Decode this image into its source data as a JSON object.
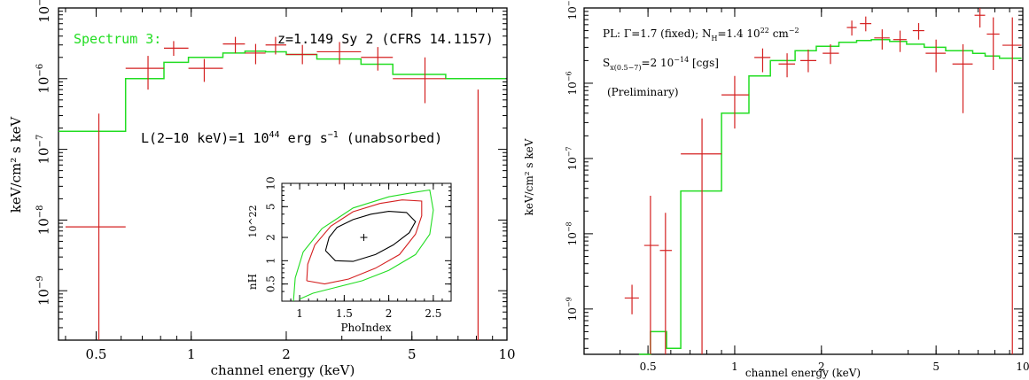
{
  "chart_data": [
    {
      "type": "scatter",
      "panel": "left",
      "title": "",
      "xlabel": "channel energy (keV)",
      "ylabel": "keV/cm² s keV",
      "x_scale": "log",
      "y_scale": "log",
      "xlim": [
        0.38,
        10
      ],
      "ylim": [
        2e-10,
        1e-05
      ],
      "x_ticks": [
        {
          "v": 0.5,
          "label": "0.5"
        },
        {
          "v": 1,
          "label": "1"
        },
        {
          "v": 2,
          "label": "2"
        },
        {
          "v": 5,
          "label": "5"
        },
        {
          "v": 10,
          "label": "10"
        }
      ],
      "y_ticks": [
        {
          "v": 1e-09,
          "base": "10",
          "exp": "−9"
        },
        {
          "v": 1e-08,
          "base": "10",
          "exp": "−8"
        },
        {
          "v": 1e-07,
          "base": "10",
          "exp": "−7"
        },
        {
          "v": 1e-06,
          "base": "10",
          "exp": "−6"
        },
        {
          "v": 1e-05,
          "base": "10",
          "exp": "−5"
        }
      ],
      "annotations": {
        "spectrum_label": "Spectrum 3:",
        "source": "z=1.149 Sy 2 (CFRS 14.1157)",
        "lum_pre": "L(2−10 keV)=1 10",
        "lum_exp": "44",
        "lum_mid": " erg s",
        "lum_exp2": "−1",
        "lum_post": " (unabsorbed)"
      },
      "colors": {
        "data": "#d42020",
        "model": "#22dd22",
        "axes": "#000000"
      },
      "series": [
        {
          "kind": "data",
          "points": [
            {
              "x": 0.51,
              "xlo": 0.4,
              "xhi": 0.62,
              "y": 8e-09,
              "ylo": 2e-10,
              "yhi": 3.2e-07
            },
            {
              "x": 0.73,
              "xlo": 0.62,
              "xhi": 0.82,
              "y": 1.4e-06,
              "ylo": 7e-07,
              "yhi": 2.1e-06
            },
            {
              "x": 0.88,
              "xlo": 0.82,
              "xhi": 0.98,
              "y": 2.7e-06,
              "ylo": 2.1e-06,
              "yhi": 3.4e-06
            },
            {
              "x": 1.1,
              "xlo": 0.98,
              "xhi": 1.26,
              "y": 1.4e-06,
              "ylo": 9e-07,
              "yhi": 1.9e-06
            },
            {
              "x": 1.38,
              "xlo": 1.26,
              "xhi": 1.48,
              "y": 3.1e-06,
              "ylo": 2.3e-06,
              "yhi": 3.9e-06
            },
            {
              "x": 1.6,
              "xlo": 1.48,
              "xhi": 1.72,
              "y": 2.3e-06,
              "ylo": 1.6e-06,
              "yhi": 3.1e-06
            },
            {
              "x": 1.85,
              "xlo": 1.72,
              "xhi": 2.0,
              "y": 3e-06,
              "ylo": 2.2e-06,
              "yhi": 3.9e-06
            },
            {
              "x": 2.25,
              "xlo": 2.0,
              "xhi": 2.5,
              "y": 2.2e-06,
              "ylo": 1.6e-06,
              "yhi": 3e-06
            },
            {
              "x": 2.95,
              "xlo": 2.5,
              "xhi": 3.45,
              "y": 2.4e-06,
              "ylo": 1.6e-06,
              "yhi": 3.3e-06
            },
            {
              "x": 3.9,
              "xlo": 3.45,
              "xhi": 4.35,
              "y": 2e-06,
              "ylo": 1.3e-06,
              "yhi": 2.8e-06
            },
            {
              "x": 5.5,
              "xlo": 4.35,
              "xhi": 6.4,
              "y": 1e-06,
              "ylo": 4.5e-07,
              "yhi": 2e-06
            },
            {
              "x": 8.1,
              "xlo": 8.1,
              "xhi": 8.1,
              "y": 7e-07,
              "ylo": 2e-10,
              "yhi": 7e-07
            }
          ]
        },
        {
          "kind": "model",
          "steps": [
            [
              0.38,
              0.62,
              1.8e-07
            ],
            [
              0.62,
              0.82,
              1e-06
            ],
            [
              0.82,
              0.98,
              1.7e-06
            ],
            [
              0.98,
              1.26,
              2e-06
            ],
            [
              1.26,
              1.48,
              2.3e-06
            ],
            [
              1.48,
              1.72,
              2.45e-06
            ],
            [
              1.72,
              2.0,
              2.4e-06
            ],
            [
              2.0,
              2.5,
              2.2e-06
            ],
            [
              2.5,
              3.45,
              1.9e-06
            ],
            [
              3.45,
              4.35,
              1.6e-06
            ],
            [
              4.35,
              6.4,
              1.15e-06
            ],
            [
              6.4,
              9.9,
              1e-06
            ]
          ]
        }
      ]
    },
    {
      "type": "contour",
      "panel": "left-inset",
      "xlabel": "PhoIndex",
      "ylabel": "nH",
      "ylabel_extra": "10^22",
      "x_scale": "linear",
      "y_scale": "log",
      "xlim": [
        0.8,
        2.7
      ],
      "ylim": [
        0.3,
        10
      ],
      "x_ticks": [
        {
          "v": 1,
          "label": "1"
        },
        {
          "v": 1.5,
          "label": "1.5"
        },
        {
          "v": 2,
          "label": "2"
        },
        {
          "v": 2.5,
          "label": "2.5"
        }
      ],
      "y_ticks": [
        {
          "v": 0.5,
          "label": "0.5"
        },
        {
          "v": 1,
          "label": "1"
        },
        {
          "v": 2,
          "label": "2"
        },
        {
          "v": 5,
          "label": "5"
        },
        {
          "v": 10,
          "label": "10"
        }
      ],
      "best_fit": {
        "x": 1.72,
        "y": 2.0
      },
      "contours": [
        {
          "color": "#000000",
          "points": [
            [
              1.29,
              1.35
            ],
            [
              1.33,
              2.0
            ],
            [
              1.42,
              2.7
            ],
            [
              1.6,
              3.4
            ],
            [
              1.8,
              4.0
            ],
            [
              2.0,
              4.35
            ],
            [
              2.2,
              4.2
            ],
            [
              2.3,
              3.2
            ],
            [
              2.23,
              2.3
            ],
            [
              2.05,
              1.6
            ],
            [
              1.85,
              1.2
            ],
            [
              1.6,
              0.98
            ],
            [
              1.4,
              1.0
            ],
            [
              1.29,
              1.35
            ]
          ]
        },
        {
          "color": "#d42020",
          "points": [
            [
              1.08,
              0.55
            ],
            [
              1.09,
              0.9
            ],
            [
              1.17,
              1.6
            ],
            [
              1.35,
              2.8
            ],
            [
              1.6,
              4.3
            ],
            [
              1.9,
              5.5
            ],
            [
              2.15,
              6.1
            ],
            [
              2.37,
              5.9
            ],
            [
              2.37,
              3.8
            ],
            [
              2.3,
              2.2
            ],
            [
              2.12,
              1.2
            ],
            [
              1.85,
              0.8
            ],
            [
              1.55,
              0.58
            ],
            [
              1.28,
              0.5
            ],
            [
              1.08,
              0.55
            ]
          ]
        },
        {
          "color": "#22dd22",
          "points": [
            [
              0.93,
              0.3
            ],
            [
              0.95,
              0.6
            ],
            [
              1.04,
              1.3
            ],
            [
              1.25,
              2.6
            ],
            [
              1.6,
              4.8
            ],
            [
              2.0,
              6.7
            ],
            [
              2.3,
              7.7
            ],
            [
              2.46,
              8.2
            ],
            [
              2.5,
              4.5
            ],
            [
              2.46,
              2.2
            ],
            [
              2.3,
              1.2
            ],
            [
              2.0,
              0.75
            ],
            [
              1.7,
              0.55
            ],
            [
              1.4,
              0.45
            ],
            [
              1.15,
              0.38
            ],
            [
              1.0,
              0.32
            ]
          ]
        }
      ]
    },
    {
      "type": "scatter",
      "panel": "right",
      "title": "",
      "xlabel": "channel energy (keV)",
      "ylabel": "keV/cm² s keV",
      "x_scale": "log",
      "y_scale": "log",
      "xlim": [
        0.3,
        10
      ],
      "ylim": [
        2.5e-10,
        1e-05
      ],
      "x_ticks": [
        {
          "v": 0.5,
          "label": "0.5"
        },
        {
          "v": 1,
          "label": "1"
        },
        {
          "v": 2,
          "label": "2"
        },
        {
          "v": 5,
          "label": "5"
        },
        {
          "v": 10,
          "label": "10"
        }
      ],
      "y_ticks": [
        {
          "v": 1e-09,
          "base": "10",
          "exp": "−9"
        },
        {
          "v": 1e-08,
          "base": "10",
          "exp": "−8"
        },
        {
          "v": 1e-07,
          "base": "10",
          "exp": "−7"
        },
        {
          "v": 1e-06,
          "base": "10",
          "exp": "−6"
        },
        {
          "v": 1e-05,
          "base": "10",
          "exp": "−5"
        }
      ],
      "annotations": {
        "pl_pre": "PL: Γ=1.7 (fixed); N",
        "pl_sub": "H",
        "pl_mid": "=1.4 10",
        "pl_exp": "22",
        "pl_mid2": " cm",
        "pl_exp2": "−2",
        "sx_pre": "S",
        "sx_sub": "x(0.5−7)",
        "sx_mid": "=2 10",
        "sx_exp": "−14",
        "sx_post": " [cgs]",
        "prelim": "(Preliminary)"
      },
      "colors": {
        "data": "#d42020",
        "model": "#22dd22",
        "axes": "#000000"
      },
      "series": [
        {
          "kind": "data",
          "points": [
            {
              "x": 0.44,
              "xlo": 0.415,
              "xhi": 0.465,
              "y": 1.4e-09,
              "ylo": 8.5e-10,
              "yhi": 2.1e-09
            },
            {
              "x": 0.51,
              "xlo": 0.485,
              "xhi": 0.545,
              "y": 7e-09,
              "ylo": 2.5e-10,
              "yhi": 3.2e-08
            },
            {
              "x": 0.575,
              "xlo": 0.55,
              "xhi": 0.605,
              "y": 6e-09,
              "ylo": 2.5e-10,
              "yhi": 1.9e-08
            },
            {
              "x": 0.77,
              "xlo": 0.65,
              "xhi": 0.9,
              "y": 1.15e-07,
              "ylo": 2.5e-10,
              "yhi": 3.4e-07
            },
            {
              "x": 1.0,
              "xlo": 0.9,
              "xhi": 1.12,
              "y": 7e-07,
              "ylo": 2.5e-07,
              "yhi": 1.25e-06
            },
            {
              "x": 1.25,
              "xlo": 1.17,
              "xhi": 1.33,
              "y": 2.2e-06,
              "ylo": 1.4e-06,
              "yhi": 2.9e-06
            },
            {
              "x": 1.52,
              "xlo": 1.42,
              "xhi": 1.62,
              "y": 1.8e-06,
              "ylo": 1.2e-06,
              "yhi": 2.5e-06
            },
            {
              "x": 1.8,
              "xlo": 1.69,
              "xhi": 1.92,
              "y": 2e-06,
              "ylo": 1.4e-06,
              "yhi": 2.8e-06
            },
            {
              "x": 2.15,
              "xlo": 2.02,
              "xhi": 2.3,
              "y": 2.5e-06,
              "ylo": 1.8e-06,
              "yhi": 3.3e-06
            },
            {
              "x": 2.55,
              "xlo": 2.45,
              "xhi": 2.65,
              "y": 5.5e-06,
              "ylo": 4.3e-06,
              "yhi": 6.8e-06
            },
            {
              "x": 2.85,
              "xlo": 2.72,
              "xhi": 2.98,
              "y": 6.2e-06,
              "ylo": 4.9e-06,
              "yhi": 7.7e-06
            },
            {
              "x": 3.25,
              "xlo": 3.05,
              "xhi": 3.45,
              "y": 4e-06,
              "ylo": 2.8e-06,
              "yhi": 5.2e-06
            },
            {
              "x": 3.75,
              "xlo": 3.55,
              "xhi": 3.95,
              "y": 3.8e-06,
              "ylo": 2.6e-06,
              "yhi": 5e-06
            },
            {
              "x": 4.35,
              "xlo": 4.15,
              "xhi": 4.55,
              "y": 5e-06,
              "ylo": 3.8e-06,
              "yhi": 6.3e-06
            },
            {
              "x": 5.0,
              "xlo": 4.6,
              "xhi": 5.4,
              "y": 2.5e-06,
              "ylo": 1.4e-06,
              "yhi": 3.8e-06
            },
            {
              "x": 6.2,
              "xlo": 5.7,
              "xhi": 6.7,
              "y": 1.8e-06,
              "ylo": 4e-07,
              "yhi": 3.3e-06
            },
            {
              "x": 7.1,
              "xlo": 6.8,
              "xhi": 7.4,
              "y": 8e-06,
              "ylo": 5.5e-06,
              "yhi": 1e-05
            },
            {
              "x": 7.9,
              "xlo": 7.5,
              "xhi": 8.3,
              "y": 4.5e-06,
              "ylo": 1.5e-06,
              "yhi": 7.5e-06
            },
            {
              "x": 9.2,
              "xlo": 8.5,
              "xhi": 9.9,
              "y": 3.2e-06,
              "ylo": 2.5e-10,
              "yhi": 7.5e-06
            }
          ]
        },
        {
          "kind": "model",
          "steps": [
            [
              0.465,
              0.51,
              2.5e-10
            ],
            [
              0.51,
              0.58,
              5e-10
            ],
            [
              0.58,
              0.65,
              3e-10
            ],
            [
              0.65,
              0.9,
              3.7e-08
            ],
            [
              0.9,
              1.12,
              4e-07
            ],
            [
              1.12,
              1.33,
              1.25e-06
            ],
            [
              1.33,
              1.62,
              2e-06
            ],
            [
              1.62,
              1.92,
              2.7e-06
            ],
            [
              1.92,
              2.3,
              3.1e-06
            ],
            [
              2.3,
              2.65,
              3.5e-06
            ],
            [
              2.65,
              2.98,
              3.7e-06
            ],
            [
              2.98,
              3.45,
              3.8e-06
            ],
            [
              3.45,
              3.95,
              3.6e-06
            ],
            [
              3.95,
              4.55,
              3.3e-06
            ],
            [
              4.55,
              5.4,
              3e-06
            ],
            [
              5.4,
              6.7,
              2.7e-06
            ],
            [
              6.7,
              7.4,
              2.5e-06
            ],
            [
              7.4,
              8.3,
              2.3e-06
            ],
            [
              8.3,
              9.9,
              2.15e-06
            ]
          ]
        }
      ]
    }
  ]
}
